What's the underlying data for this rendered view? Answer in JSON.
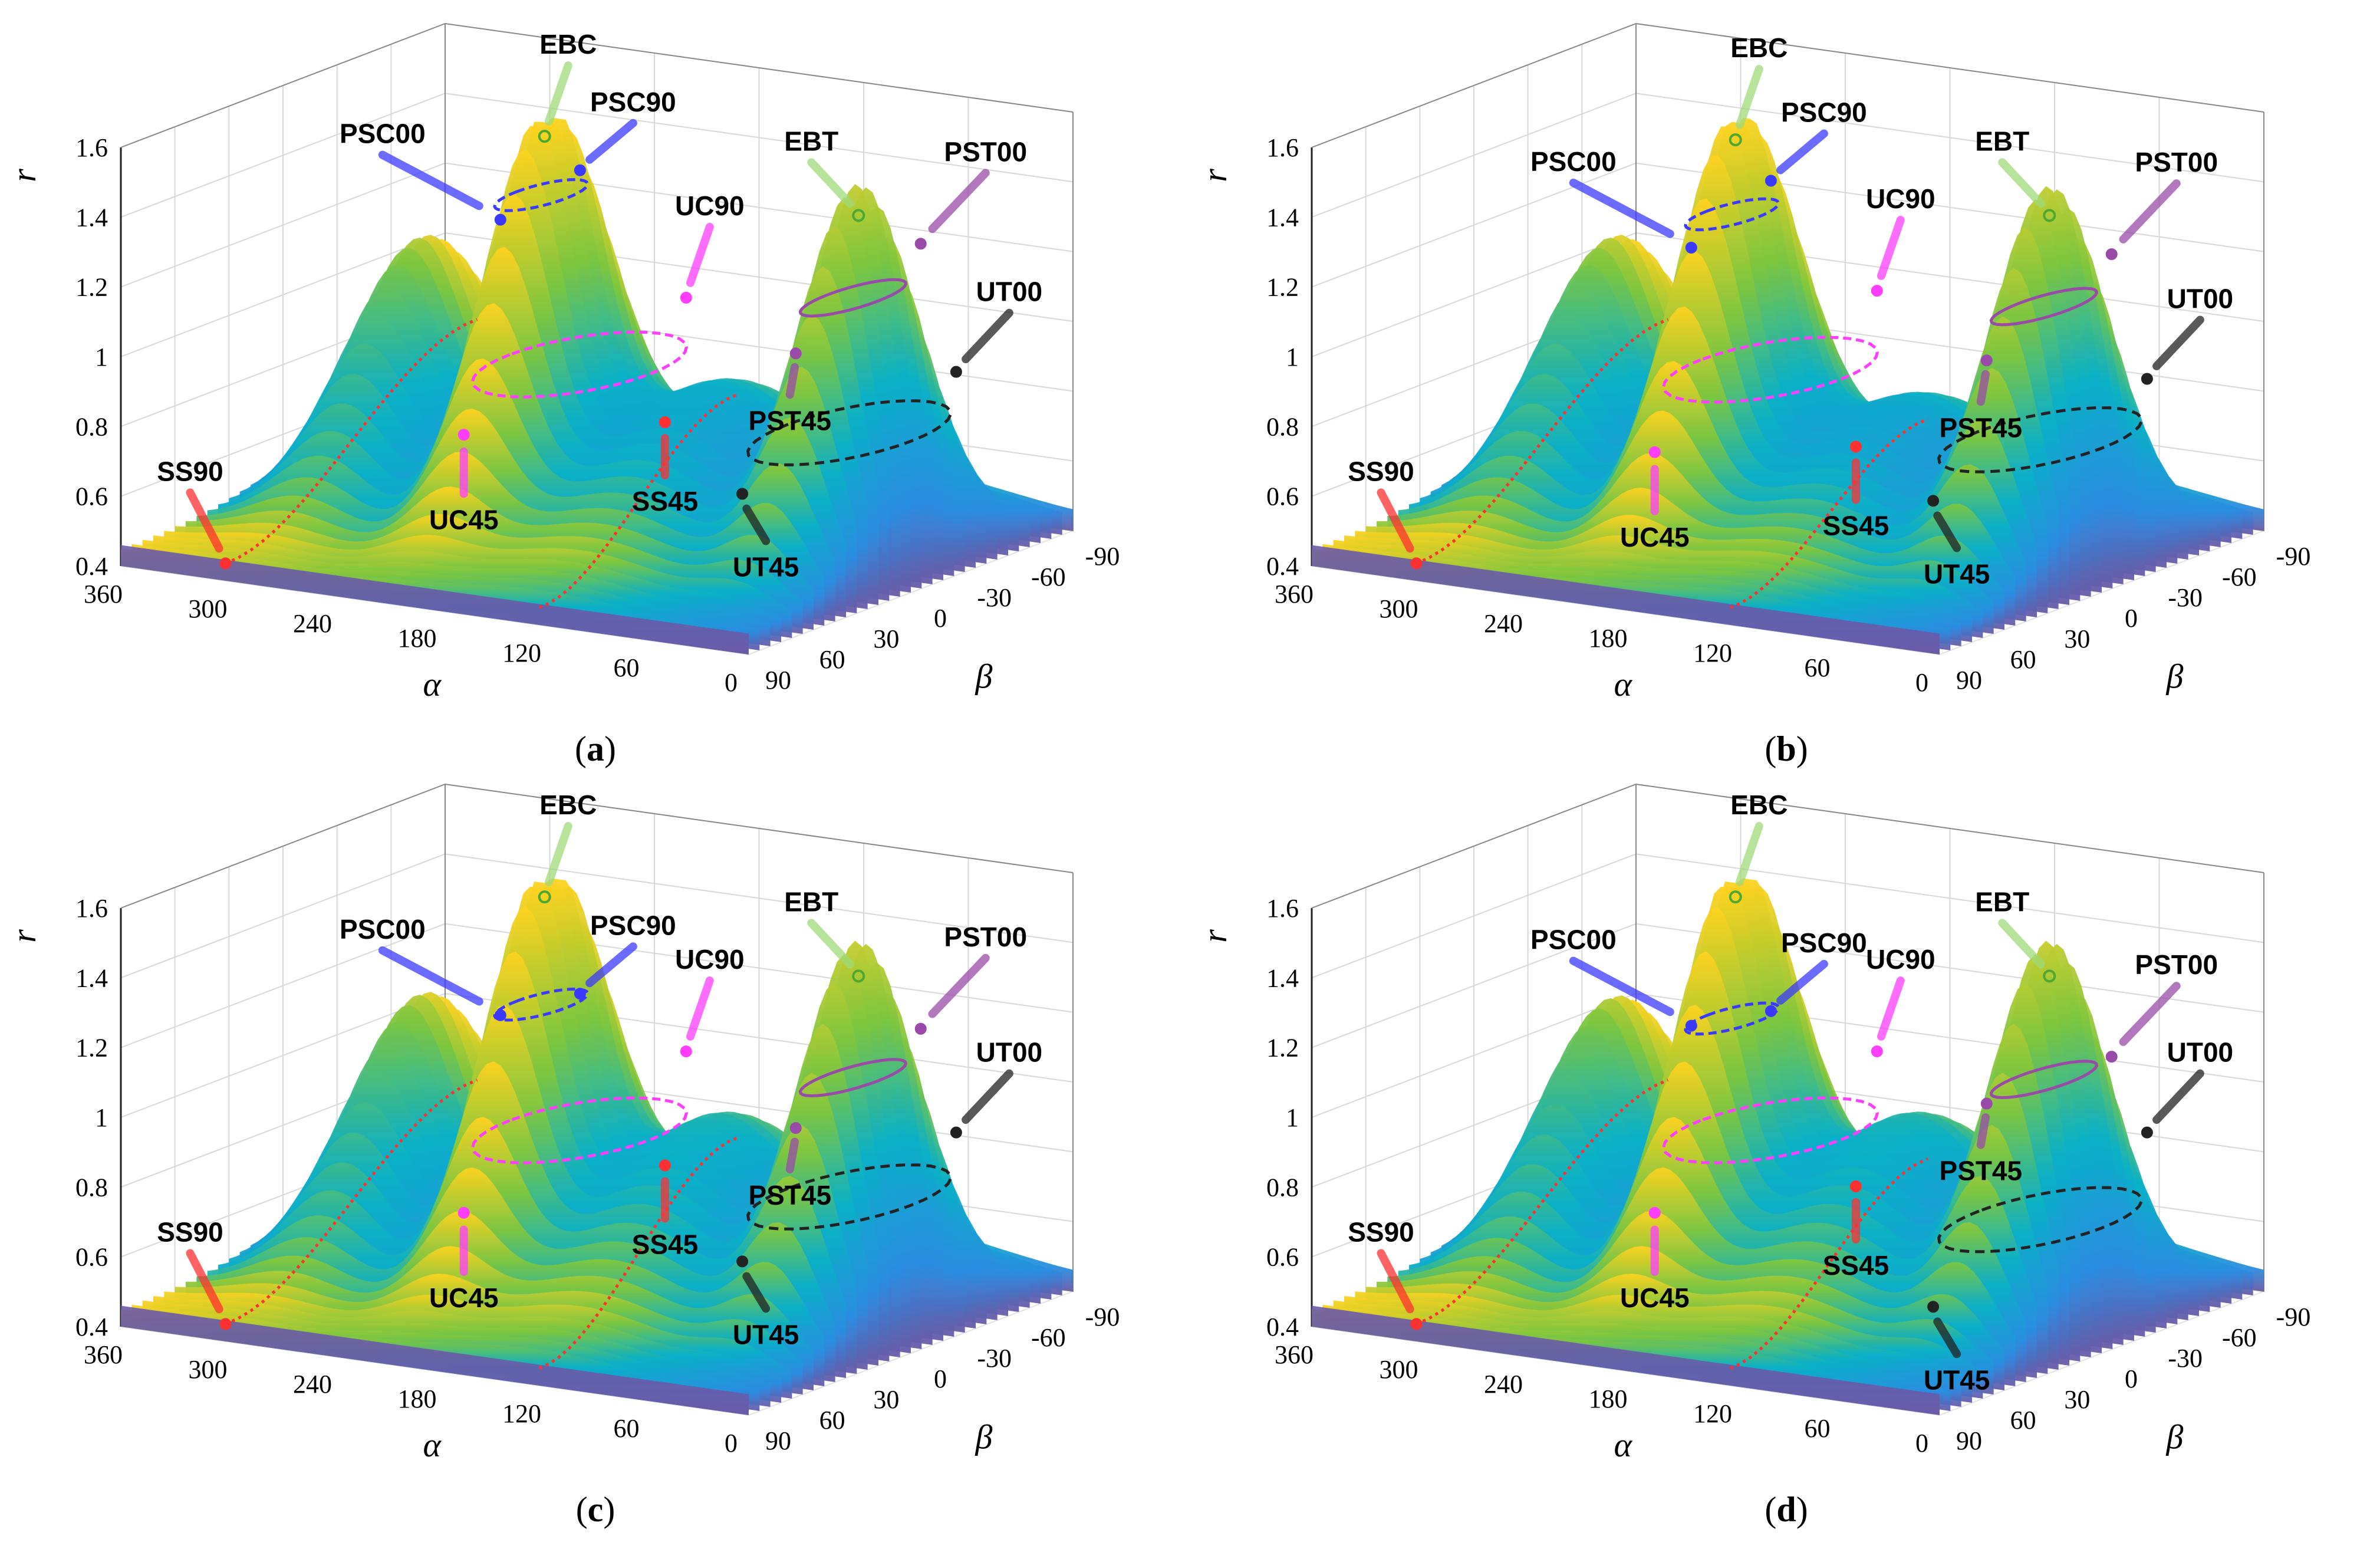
{
  "chart_data": [
    {
      "type": "surface",
      "caption": "a",
      "title": "",
      "xlabel": "α",
      "ylabel": "β",
      "zlabel": "r",
      "x_ticks": [
        "360",
        "300",
        "240",
        "180",
        "120",
        "60",
        "0"
      ],
      "y_ticks": [
        "90",
        "60",
        "30",
        "0",
        "-30",
        "-60",
        "-90"
      ],
      "z_ticks": [
        "0.4",
        "0.6",
        "0.8",
        "1",
        "1.2",
        "1.4",
        "1.6"
      ],
      "xlim": [
        0,
        360
      ],
      "ylim": [
        -90,
        90
      ],
      "zlim": [
        0.4,
        1.6
      ],
      "peaks": {
        "ebc": 1.56,
        "ebt": 1.46,
        "side": 1.17,
        "saddle": 0.9
      },
      "points": [
        {
          "name": "EBC",
          "alpha": 210,
          "beta": 0,
          "r": 1.56
        },
        {
          "name": "EBT",
          "alpha": 30,
          "beta": 0,
          "r": 1.46
        },
        {
          "name": "PSC00",
          "alpha": 225,
          "beta": 10,
          "r": 1.33
        },
        {
          "name": "PSC90",
          "alpha": 200,
          "beta": -10,
          "r": 1.45
        },
        {
          "name": "PST00",
          "alpha": 15,
          "beta": -20,
          "r": 1.35
        },
        {
          "name": "PST45",
          "alpha": 35,
          "beta": 30,
          "r": 1.12
        },
        {
          "name": "UC90",
          "alpha": 165,
          "beta": -35,
          "r": 1.06
        },
        {
          "name": "UC45",
          "alpha": 215,
          "beta": 40,
          "r": 0.78
        },
        {
          "name": "UT00",
          "alpha": 5,
          "beta": -30,
          "r": 0.97
        },
        {
          "name": "UT45",
          "alpha": 45,
          "beta": 50,
          "r": 0.75
        },
        {
          "name": "SS90",
          "alpha": 300,
          "beta": 90,
          "r": 0.45
        },
        {
          "name": "SS45",
          "alpha": 110,
          "beta": 30,
          "r": 0.87
        }
      ]
    },
    {
      "type": "surface",
      "caption": "b",
      "title": "",
      "xlabel": "α",
      "ylabel": "β",
      "zlabel": "r",
      "x_ticks": [
        "360",
        "300",
        "240",
        "180",
        "120",
        "60",
        "0"
      ],
      "y_ticks": [
        "90",
        "60",
        "30",
        "0",
        "-30",
        "-60",
        "-90"
      ],
      "z_ticks": [
        "0.4",
        "0.6",
        "0.8",
        "1",
        "1.2",
        "1.4",
        "1.6"
      ],
      "xlim": [
        0,
        360
      ],
      "ylim": [
        -90,
        90
      ],
      "zlim": [
        0.4,
        1.6
      ],
      "peaks": {
        "ebc": 1.55,
        "ebt": 1.46,
        "side": 1.17,
        "saddle": 0.86
      },
      "points": [
        {
          "name": "EBC",
          "alpha": 210,
          "beta": 0,
          "r": 1.55
        },
        {
          "name": "EBT",
          "alpha": 30,
          "beta": 0,
          "r": 1.46
        },
        {
          "name": "PSC00",
          "alpha": 225,
          "beta": 10,
          "r": 1.25
        },
        {
          "name": "PSC90",
          "alpha": 200,
          "beta": -10,
          "r": 1.42
        },
        {
          "name": "PST00",
          "alpha": 15,
          "beta": -20,
          "r": 1.32
        },
        {
          "name": "PST45",
          "alpha": 35,
          "beta": 30,
          "r": 1.1
        },
        {
          "name": "UC90",
          "alpha": 165,
          "beta": -35,
          "r": 1.08
        },
        {
          "name": "UC45",
          "alpha": 215,
          "beta": 40,
          "r": 0.73
        },
        {
          "name": "UT00",
          "alpha": 5,
          "beta": -30,
          "r": 0.95
        },
        {
          "name": "UT45",
          "alpha": 45,
          "beta": 50,
          "r": 0.73
        },
        {
          "name": "SS90",
          "alpha": 300,
          "beta": 90,
          "r": 0.45
        },
        {
          "name": "SS45",
          "alpha": 110,
          "beta": 30,
          "r": 0.8
        }
      ]
    },
    {
      "type": "surface",
      "caption": "c",
      "title": "",
      "xlabel": "α",
      "ylabel": "β",
      "zlabel": "r",
      "x_ticks": [
        "360",
        "300",
        "240",
        "180",
        "120",
        "60",
        "0"
      ],
      "y_ticks": [
        "90",
        "60",
        "30",
        "0",
        "-30",
        "-60",
        "-90"
      ],
      "z_ticks": [
        "0.4",
        "0.6",
        "0.8",
        "1",
        "1.2",
        "1.4",
        "1.6"
      ],
      "xlim": [
        0,
        360
      ],
      "ylim": [
        -90,
        90
      ],
      "zlim": [
        0.4,
        1.6
      ],
      "peaks": {
        "ebc": 1.56,
        "ebt": 1.46,
        "side": 1.18,
        "saddle": 0.98
      },
      "points": [
        {
          "name": "EBC",
          "alpha": 210,
          "beta": 0,
          "r": 1.56
        },
        {
          "name": "EBT",
          "alpha": 30,
          "beta": 0,
          "r": 1.46
        },
        {
          "name": "PSC00",
          "alpha": 225,
          "beta": 10,
          "r": 1.23
        },
        {
          "name": "PSC90",
          "alpha": 200,
          "beta": -10,
          "r": 1.27
        },
        {
          "name": "PST00",
          "alpha": 15,
          "beta": -20,
          "r": 1.28
        },
        {
          "name": "PST45",
          "alpha": 35,
          "beta": 30,
          "r": 1.08
        },
        {
          "name": "UC90",
          "alpha": 165,
          "beta": -35,
          "r": 1.08
        },
        {
          "name": "UC45",
          "alpha": 215,
          "beta": 40,
          "r": 0.73
        },
        {
          "name": "UT00",
          "alpha": 5,
          "beta": -30,
          "r": 0.97
        },
        {
          "name": "UT45",
          "alpha": 45,
          "beta": 50,
          "r": 0.73
        },
        {
          "name": "SS90",
          "alpha": 300,
          "beta": 90,
          "r": 0.45
        },
        {
          "name": "SS45",
          "alpha": 110,
          "beta": 30,
          "r": 0.92
        }
      ]
    },
    {
      "type": "surface",
      "caption": "d",
      "title": "",
      "xlabel": "α",
      "ylabel": "β",
      "zlabel": "r",
      "x_ticks": [
        "360",
        "300",
        "240",
        "180",
        "120",
        "60",
        "0"
      ],
      "y_ticks": [
        "90",
        "60",
        "30",
        "0",
        "-30",
        "-60",
        "-90"
      ],
      "z_ticks": [
        "0.4",
        "0.6",
        "0.8",
        "1",
        "1.2",
        "1.4",
        "1.6"
      ],
      "xlim": [
        0,
        360
      ],
      "ylim": [
        -90,
        90
      ],
      "zlim": [
        0.4,
        1.6
      ],
      "peaks": {
        "ebc": 1.56,
        "ebt": 1.46,
        "side": 1.17,
        "saddle": 0.98
      },
      "points": [
        {
          "name": "EBC",
          "alpha": 210,
          "beta": 0,
          "r": 1.56
        },
        {
          "name": "EBT",
          "alpha": 30,
          "beta": 0,
          "r": 1.46
        },
        {
          "name": "PSC00",
          "alpha": 225,
          "beta": 10,
          "r": 1.2
        },
        {
          "name": "PSC90",
          "alpha": 200,
          "beta": -10,
          "r": 1.22
        },
        {
          "name": "PST00",
          "alpha": 15,
          "beta": -20,
          "r": 1.2
        },
        {
          "name": "PST45",
          "alpha": 35,
          "beta": 30,
          "r": 1.15
        },
        {
          "name": "UC90",
          "alpha": 165,
          "beta": -35,
          "r": 1.08
        },
        {
          "name": "UC45",
          "alpha": 215,
          "beta": 40,
          "r": 0.73
        },
        {
          "name": "UT00",
          "alpha": 5,
          "beta": -30,
          "r": 0.97
        },
        {
          "name": "UT45",
          "alpha": 45,
          "beta": 50,
          "r": 0.6
        },
        {
          "name": "SS90",
          "alpha": 300,
          "beta": 90,
          "r": 0.45
        },
        {
          "name": "SS45",
          "alpha": 110,
          "beta": 30,
          "r": 0.86
        }
      ]
    }
  ],
  "colors": {
    "ebc": "#9edb7a",
    "psc": "#3a3aff",
    "pst": "#9a4aa8",
    "uc": "#ff3dff",
    "ut": "#222222",
    "ss": "#ff3030",
    "surface_low": "#6a5aa8",
    "surface_mid": "#0aa0d8",
    "surface_high": "#ffd21e"
  }
}
